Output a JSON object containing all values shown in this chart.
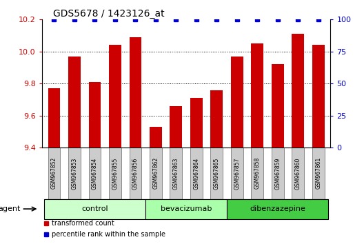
{
  "title": "GDS5678 / 1423126_at",
  "samples": [
    "GSM967852",
    "GSM967853",
    "GSM967854",
    "GSM967855",
    "GSM967856",
    "GSM967862",
    "GSM967863",
    "GSM967864",
    "GSM967865",
    "GSM967857",
    "GSM967858",
    "GSM967859",
    "GSM967860",
    "GSM967861"
  ],
  "values": [
    9.77,
    9.97,
    9.81,
    10.04,
    10.09,
    9.53,
    9.66,
    9.71,
    9.76,
    9.97,
    10.05,
    9.92,
    10.11,
    10.04
  ],
  "percentile": [
    100,
    100,
    100,
    100,
    100,
    100,
    100,
    100,
    100,
    100,
    100,
    100,
    100,
    100
  ],
  "bar_color": "#cc0000",
  "percentile_color": "#0000cc",
  "ylim_left": [
    9.4,
    10.2
  ],
  "ylim_right": [
    0,
    100
  ],
  "yticks_left": [
    9.4,
    9.6,
    9.8,
    10.0,
    10.2
  ],
  "yticks_right": [
    0,
    25,
    50,
    75,
    100
  ],
  "groups": [
    {
      "label": "control",
      "start": 0,
      "end": 5,
      "color": "#ccffcc"
    },
    {
      "label": "bevacizumab",
      "start": 5,
      "end": 9,
      "color": "#aaffaa"
    },
    {
      "label": "dibenzazepine",
      "start": 9,
      "end": 14,
      "color": "#44cc44"
    }
  ],
  "agent_label": "agent",
  "legend_items": [
    {
      "label": "transformed count",
      "color": "#cc0000"
    },
    {
      "label": "percentile rank within the sample",
      "color": "#0000cc"
    }
  ],
  "grid_lines": [
    9.6,
    9.8,
    10.0
  ],
  "sample_box_color": "#cccccc",
  "bar_width": 0.6
}
